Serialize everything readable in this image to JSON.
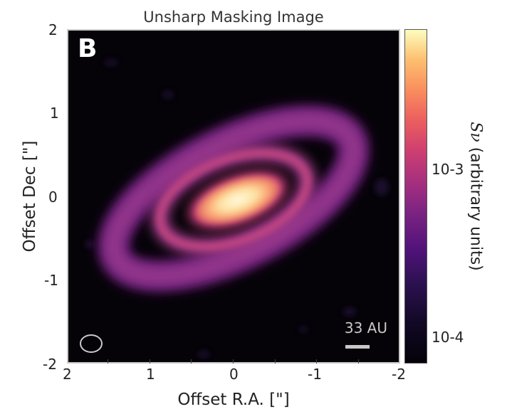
{
  "title": "Unsharp Masking Image",
  "panel_letter": "B",
  "scale_bar": {
    "label": "33 AU"
  },
  "y_axis": {
    "label": "Offset Dec [\"]",
    "ticks": [
      "2",
      "1",
      "0",
      "-1",
      "-2"
    ]
  },
  "x_axis": {
    "label": "Offset R.A. [\"]",
    "ticks": [
      "2",
      "1",
      "0",
      "-1",
      "-2"
    ]
  },
  "colorbar": {
    "label_symbol": "Sν",
    "label_text": "(arbitrary units)",
    "ticks": [
      "10-3",
      "10-4"
    ]
  },
  "colors": {
    "background": "#050308",
    "ring_outer": "#8a2f8f",
    "inner_disk": "#fbe9b0",
    "frame": "#c8c8c8"
  }
}
